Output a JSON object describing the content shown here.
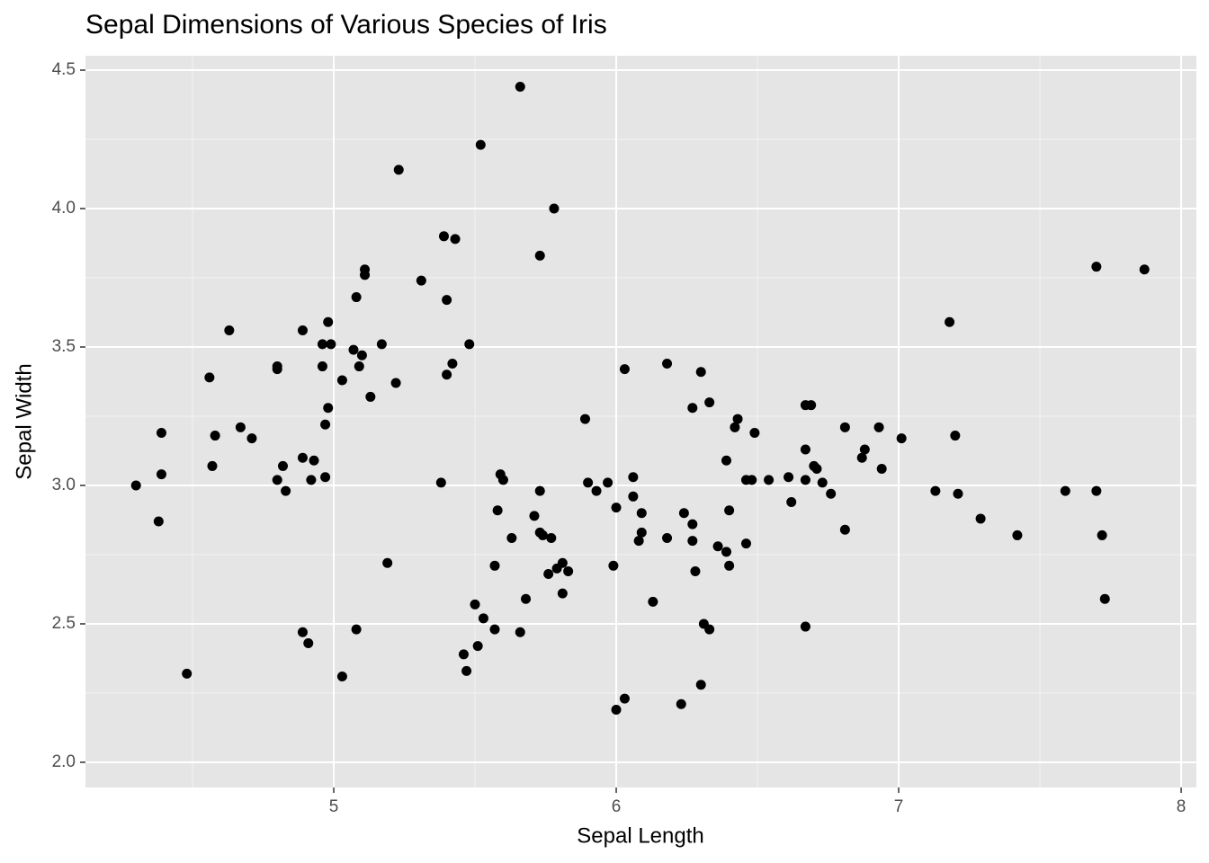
{
  "chart_data": {
    "type": "scatter",
    "title": "Sepal Dimensions of Various Species of Iris",
    "x_label": "Sepal Length",
    "y_label": "Sepal Width",
    "color": "#000000",
    "grid": true,
    "xlim": [
      4.121,
      8.054
    ],
    "ylim": [
      1.909,
      4.552
    ],
    "xticks": [
      5,
      6,
      7,
      8
    ],
    "yticks": [
      {
        "value": 2,
        "label": "2.0"
      },
      {
        "value": 2.5,
        "label": "2.5"
      },
      {
        "value": 3,
        "label": "3.0"
      },
      {
        "value": 3.5,
        "label": "3.5"
      },
      {
        "value": 4,
        "label": "4.0"
      },
      {
        "value": 4.5,
        "label": "4.5"
      }
    ],
    "x": [
      4.3,
      4.38,
      4.39,
      4.39,
      4.48,
      4.56,
      4.57,
      4.58,
      4.63,
      4.67,
      4.71,
      4.8,
      4.8,
      4.8,
      4.82,
      4.83,
      4.89,
      4.89,
      4.89,
      4.91,
      4.92,
      4.93,
      4.96,
      4.96,
      4.97,
      4.97,
      4.98,
      4.98,
      4.99,
      5.03,
      5.03,
      5.07,
      5.08,
      5.08,
      5.09,
      5.1,
      5.11,
      5.11,
      5.13,
      5.17,
      5.19,
      5.22,
      5.23,
      5.31,
      5.38,
      5.39,
      5.4,
      5.4,
      5.42,
      5.43,
      5.48,
      5.52,
      5.46,
      5.47,
      5.5,
      5.51,
      5.53,
      5.57,
      5.57,
      5.58,
      5.59,
      5.6,
      5.63,
      5.66,
      5.66,
      5.68,
      5.71,
      5.73,
      5.73,
      5.73,
      5.74,
      5.76,
      5.77,
      5.78,
      5.79,
      5.81,
      5.83,
      5.81,
      5.89,
      5.9,
      5.93,
      5.97,
      5.99,
      6.0,
      6.0,
      6.03,
      6.03,
      6.06,
      6.06,
      6.08,
      6.09,
      6.09,
      6.13,
      6.18,
      6.18,
      6.23,
      6.24,
      6.27,
      6.27,
      6.27,
      6.28,
      6.3,
      6.3,
      6.31,
      6.33,
      6.33,
      6.36,
      6.39,
      6.39,
      6.4,
      6.4,
      6.42,
      6.43,
      6.46,
      6.46,
      6.48,
      6.49,
      6.54,
      6.61,
      6.62,
      6.67,
      6.67,
      6.67,
      6.67,
      6.69,
      6.7,
      6.71,
      6.73,
      6.76,
      6.81,
      6.81,
      6.87,
      6.88,
      6.93,
      6.94,
      7.01,
      7.13,
      7.18,
      7.2,
      7.21,
      7.29,
      7.42,
      7.59,
      7.7,
      7.7,
      7.72,
      7.73,
      7.87
    ],
    "values": [
      3.0,
      2.87,
      3.04,
      3.19,
      2.32,
      3.39,
      3.07,
      3.18,
      3.56,
      3.21,
      3.17,
      3.43,
      3.42,
      3.02,
      3.07,
      2.98,
      3.56,
      3.1,
      2.47,
      2.43,
      3.02,
      3.09,
      3.51,
      3.43,
      3.03,
      3.22,
      3.59,
      3.28,
      3.51,
      3.38,
      2.31,
      3.49,
      3.68,
      2.48,
      3.43,
      3.47,
      3.76,
      3.78,
      3.32,
      3.51,
      2.72,
      3.37,
      4.14,
      3.74,
      3.01,
      3.9,
      3.67,
      3.4,
      3.44,
      3.89,
      3.51,
      4.23,
      2.39,
      2.33,
      2.57,
      2.42,
      2.52,
      2.48,
      2.71,
      2.91,
      3.04,
      3.02,
      2.81,
      4.44,
      2.47,
      2.59,
      2.89,
      3.83,
      2.98,
      2.83,
      2.82,
      2.68,
      2.81,
      4.0,
      2.7,
      2.72,
      2.69,
      2.61,
      3.24,
      3.01,
      2.98,
      3.01,
      2.71,
      2.92,
      2.19,
      3.42,
      2.23,
      2.96,
      3.03,
      2.8,
      2.9,
      2.83,
      2.58,
      3.44,
      2.81,
      2.21,
      2.9,
      2.8,
      3.28,
      2.86,
      2.69,
      3.41,
      2.28,
      2.5,
      2.48,
      3.3,
      2.78,
      3.09,
      2.76,
      2.71,
      2.91,
      3.21,
      3.24,
      3.02,
      2.79,
      3.02,
      3.19,
      3.02,
      3.03,
      2.94,
      3.29,
      3.13,
      2.49,
      3.02,
      3.29,
      3.07,
      3.06,
      3.01,
      2.97,
      3.21,
      2.84,
      3.1,
      3.13,
      3.21,
      3.06,
      3.17,
      2.98,
      3.59,
      3.18,
      2.97,
      2.88,
      2.82,
      2.98,
      3.79,
      2.98,
      2.82,
      2.59,
      3.78
    ]
  }
}
